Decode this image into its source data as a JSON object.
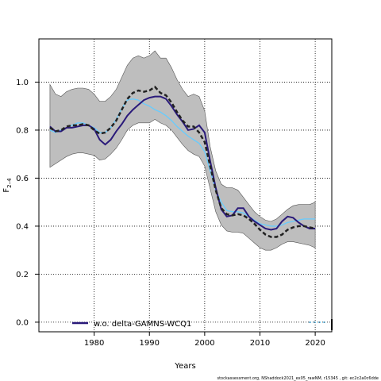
{
  "chart_data": {
    "type": "line",
    "xlabel": "Years",
    "ylabel": "F",
    "ylabel_sub": "2–4",
    "xlim": [
      1970,
      2023
    ],
    "ylim": [
      -0.04,
      1.18
    ],
    "xticks": [
      1980,
      1990,
      2000,
      2010,
      2020
    ],
    "yticks": [
      0.0,
      0.2,
      0.4,
      0.6,
      0.8,
      1.0
    ],
    "grid": true,
    "legend": {
      "placement": "bottom-left",
      "entries": [
        "w.o. delta-GAMNS-WCQ1"
      ]
    },
    "footer": "stockassessment.org, NShaddock2021_ex05_rawNM, r15345 , git: ec2c2a0c6dde",
    "colors": {
      "band": "#bebebe",
      "base": "#222222",
      "alt": "#2a1a7a",
      "light": "#66ccff"
    },
    "x": [
      1972,
      1973,
      1974,
      1975,
      1976,
      1977,
      1978,
      1979,
      1980,
      1981,
      1982,
      1983,
      1984,
      1985,
      1986,
      1987,
      1988,
      1989,
      1990,
      1991,
      1992,
      1993,
      1994,
      1995,
      1996,
      1997,
      1998,
      1999,
      2000,
      2001,
      2002,
      2003,
      2004,
      2005,
      2006,
      2007,
      2008,
      2009,
      2010,
      2011,
      2012,
      2013,
      2014,
      2015,
      2016,
      2017,
      2018,
      2019,
      2020
    ],
    "band_upper": [
      0.99,
      0.95,
      0.94,
      0.96,
      0.97,
      0.975,
      0.975,
      0.97,
      0.95,
      0.92,
      0.92,
      0.94,
      0.97,
      1.02,
      1.07,
      1.1,
      1.11,
      1.1,
      1.11,
      1.13,
      1.1,
      1.1,
      1.06,
      1.01,
      0.97,
      0.94,
      0.95,
      0.94,
      0.88,
      0.73,
      0.63,
      0.575,
      0.56,
      0.56,
      0.55,
      0.52,
      0.49,
      0.46,
      0.44,
      0.425,
      0.42,
      0.43,
      0.45,
      0.47,
      0.485,
      0.49,
      0.49,
      0.49,
      0.5
    ],
    "band_lower": [
      0.645,
      0.66,
      0.675,
      0.69,
      0.7,
      0.705,
      0.705,
      0.7,
      0.695,
      0.675,
      0.68,
      0.7,
      0.725,
      0.76,
      0.8,
      0.82,
      0.83,
      0.83,
      0.83,
      0.845,
      0.83,
      0.82,
      0.8,
      0.77,
      0.74,
      0.715,
      0.7,
      0.69,
      0.65,
      0.555,
      0.46,
      0.405,
      0.38,
      0.375,
      0.375,
      0.37,
      0.35,
      0.33,
      0.31,
      0.3,
      0.3,
      0.31,
      0.325,
      0.335,
      0.335,
      0.33,
      0.325,
      0.32,
      0.31
    ],
    "series": [
      {
        "name": "",
        "style": "dashed",
        "values": [
          0.81,
          0.795,
          0.8,
          0.815,
          0.82,
          0.82,
          0.825,
          0.82,
          0.8,
          0.785,
          0.79,
          0.81,
          0.84,
          0.885,
          0.93,
          0.955,
          0.965,
          0.96,
          0.965,
          0.98,
          0.955,
          0.945,
          0.915,
          0.875,
          0.84,
          0.815,
          0.815,
          0.79,
          0.75,
          0.65,
          0.55,
          0.475,
          0.45,
          0.445,
          0.45,
          0.445,
          0.43,
          0.41,
          0.385,
          0.365,
          0.355,
          0.355,
          0.365,
          0.385,
          0.395,
          0.4,
          0.4,
          0.395,
          0.39
        ]
      },
      {
        "name": "w.o. delta-GAMNS-WCQ1",
        "style": "solid",
        "values": [
          0.815,
          0.795,
          0.795,
          0.81,
          0.81,
          0.815,
          0.82,
          0.82,
          0.805,
          0.76,
          0.74,
          0.76,
          0.795,
          0.825,
          0.86,
          0.885,
          0.905,
          0.925,
          0.935,
          0.94,
          0.94,
          0.93,
          0.9,
          0.865,
          0.835,
          0.8,
          0.805,
          0.82,
          0.79,
          0.67,
          0.56,
          0.47,
          0.44,
          0.445,
          0.475,
          0.475,
          0.44,
          0.42,
          0.405,
          0.39,
          0.385,
          0.39,
          0.42,
          0.44,
          0.435,
          0.415,
          0.4,
          0.39,
          0.39
        ]
      },
      {
        "name": "",
        "style": "solid-light",
        "values": [
          0.8,
          0.79,
          0.8,
          0.81,
          0.82,
          0.83,
          0.83,
          0.82,
          0.81,
          0.79,
          0.79,
          0.81,
          0.845,
          0.89,
          0.925,
          0.93,
          0.925,
          0.91,
          0.9,
          0.885,
          0.875,
          0.86,
          0.84,
          0.815,
          0.795,
          0.775,
          0.76,
          0.745,
          0.71,
          0.63,
          0.55,
          0.5,
          0.465,
          0.46,
          0.46,
          0.455,
          0.44,
          0.425,
          0.41,
          0.405,
          0.4,
          0.4,
          0.405,
          0.415,
          0.42,
          0.425,
          0.43,
          0.43,
          0.43
        ]
      }
    ]
  }
}
